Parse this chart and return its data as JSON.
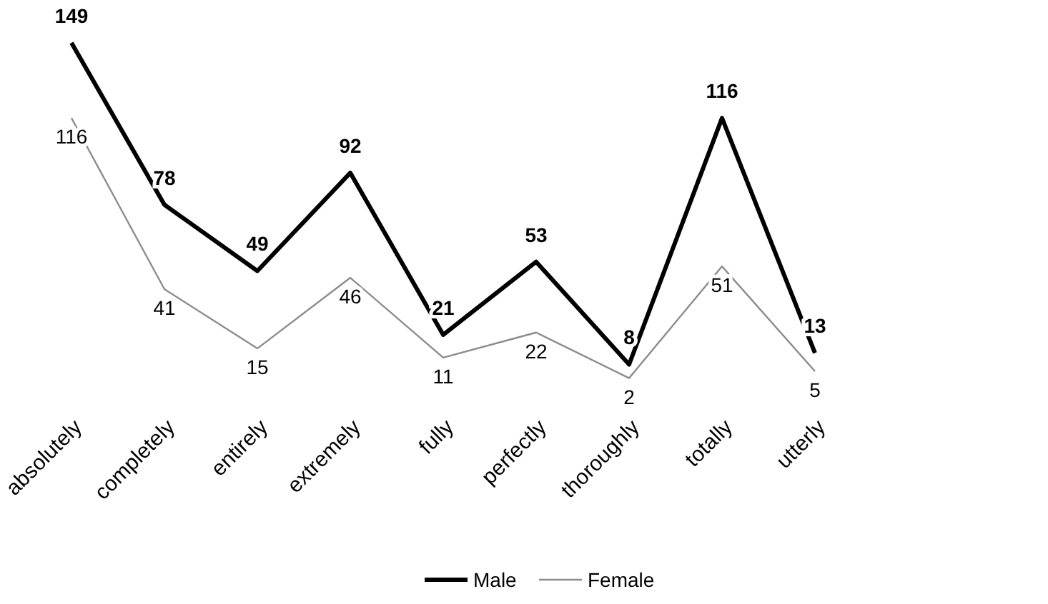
{
  "chart_data": {
    "type": "line",
    "categories": [
      "absolutely",
      "completely",
      "entirely",
      "extremely",
      "fully",
      "perfectly",
      "thoroughly",
      "totally",
      "utterly"
    ],
    "series": [
      {
        "name": "Male",
        "color": "#000000",
        "values": [
          149,
          78,
          49,
          92,
          21,
          53,
          8,
          116,
          13
        ]
      },
      {
        "name": "Female",
        "color": "#8c8c8c",
        "values": [
          116,
          41,
          15,
          46,
          11,
          22,
          2,
          51,
          5
        ]
      }
    ],
    "data_labels": true,
    "legend": "bottom",
    "marker": "none",
    "line_style": "solid"
  }
}
